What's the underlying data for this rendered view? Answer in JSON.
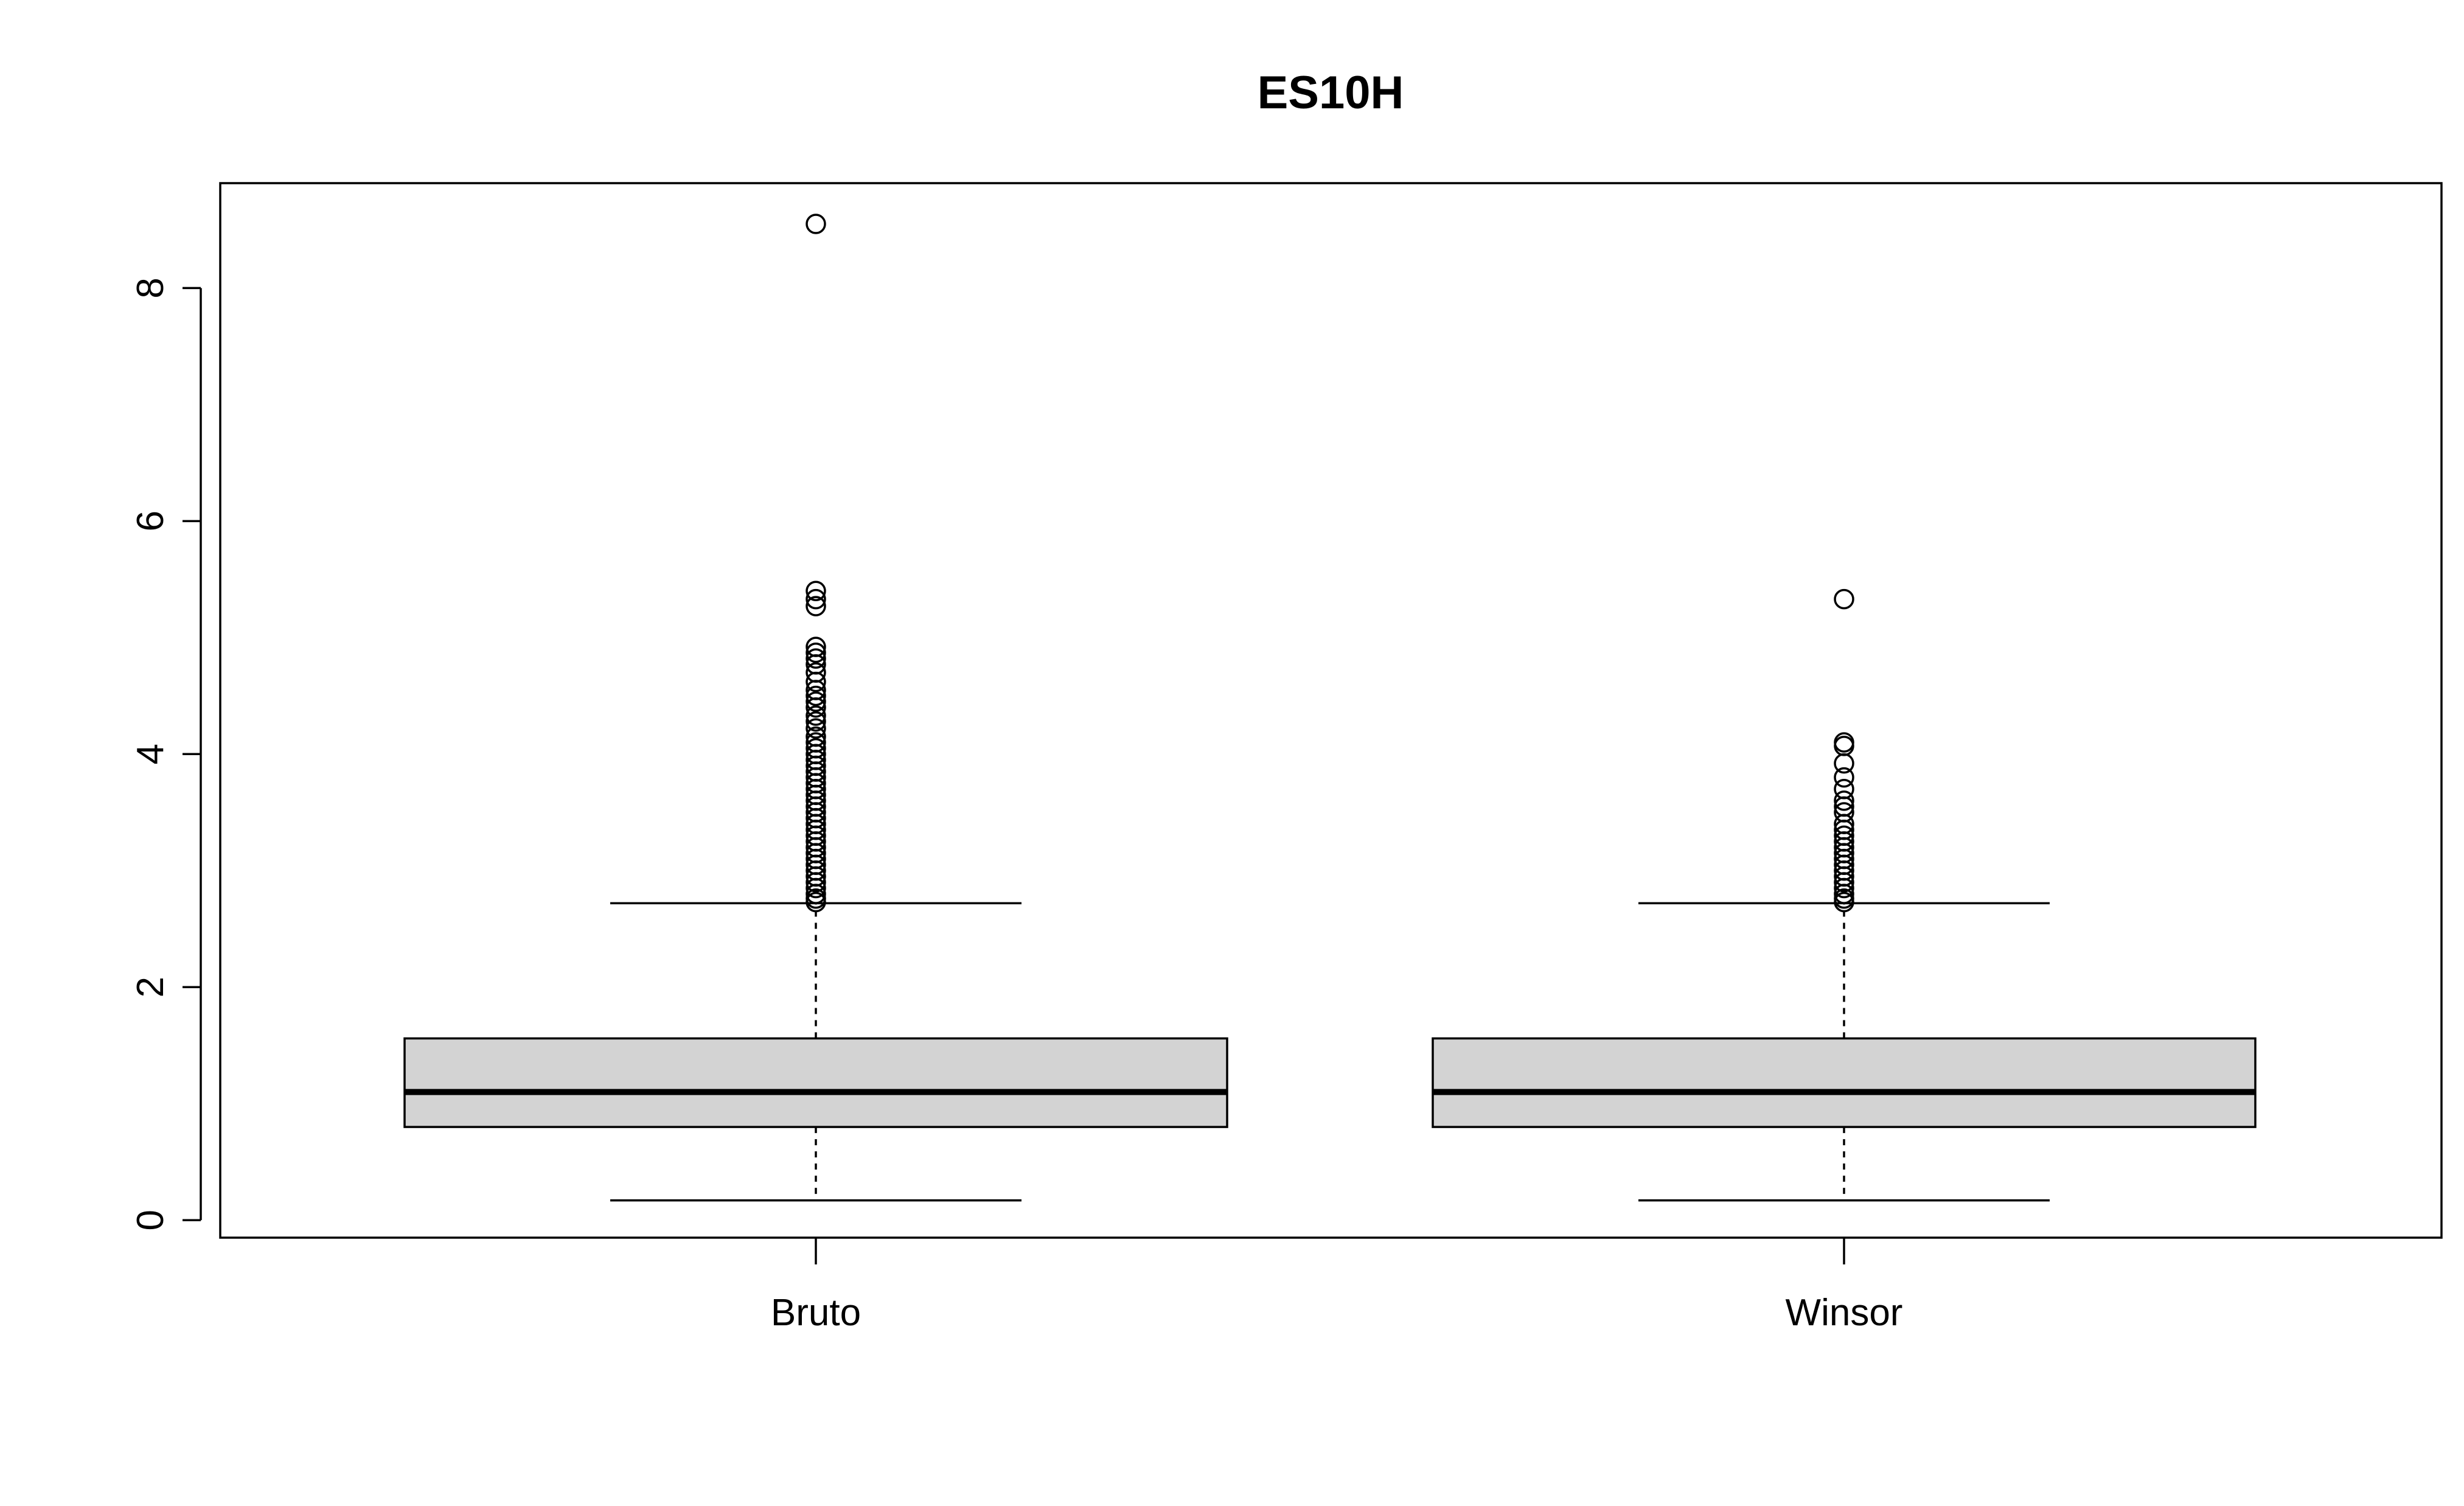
{
  "chart_data": {
    "type": "boxplot",
    "title": "ES10H",
    "xlabel": "",
    "ylabel": "",
    "ylim": [
      -0.15,
      8.9
    ],
    "yticks": [
      0,
      2,
      4,
      6,
      8
    ],
    "grid": false,
    "box_fill": "#d3d3d3",
    "categories": [
      "Bruto",
      "Winsor"
    ],
    "boxes": [
      {
        "name": "Bruto",
        "whisker_low": 0.17,
        "q1": 0.8,
        "median": 1.1,
        "q3": 1.56,
        "whisker_high": 2.72,
        "outliers": [
          8.55,
          5.4,
          5.33,
          5.27,
          4.92,
          4.87,
          4.82,
          4.77,
          4.7,
          4.62,
          4.55,
          4.5,
          4.45,
          4.4,
          4.33,
          4.28,
          4.22,
          4.15,
          4.1,
          4.05,
          4.0,
          3.95,
          3.9,
          3.85,
          3.8,
          3.75,
          3.7,
          3.65,
          3.6,
          3.55,
          3.5,
          3.45,
          3.4,
          3.35,
          3.3,
          3.25,
          3.2,
          3.15,
          3.1,
          3.05,
          3.0,
          2.95,
          2.9,
          2.85,
          2.8,
          2.76,
          2.73
        ]
      },
      {
        "name": "Winsor",
        "whisker_low": 0.17,
        "q1": 0.8,
        "median": 1.1,
        "q3": 1.56,
        "whisker_high": 2.72,
        "outliers": [
          5.33,
          4.1,
          4.07,
          3.92,
          3.8,
          3.7,
          3.6,
          3.55,
          3.5,
          3.4,
          3.35,
          3.3,
          3.25,
          3.2,
          3.15,
          3.1,
          3.05,
          3.0,
          2.95,
          2.9,
          2.85,
          2.8,
          2.76,
          2.73
        ]
      }
    ]
  }
}
